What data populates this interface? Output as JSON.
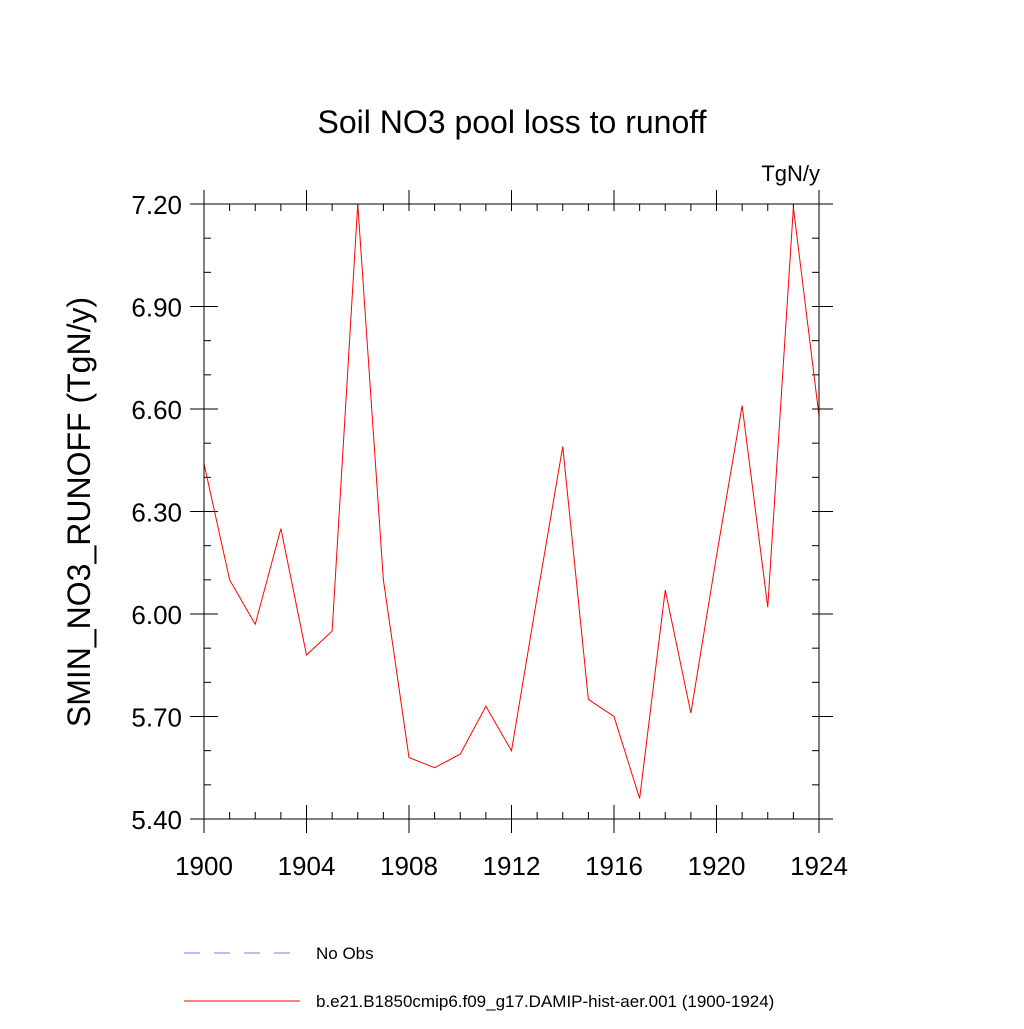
{
  "chart_data": {
    "type": "line",
    "title": "Soil NO3 pool loss to runoff",
    "units_label": "TgN/y",
    "xlabel": "",
    "ylabel": "SMIN_NO3_RUNOFF  (TgN/y)",
    "xlim": [
      1900,
      1924
    ],
    "ylim": [
      5.4,
      7.2
    ],
    "x_ticks": [
      1900,
      1904,
      1908,
      1912,
      1916,
      1920,
      1924
    ],
    "x_tick_labels": [
      "1900",
      "1904",
      "1908",
      "1912",
      "1916",
      "1920",
      "1924"
    ],
    "y_ticks": [
      5.4,
      5.7,
      6.0,
      6.3,
      6.6,
      6.9,
      7.2
    ],
    "y_tick_labels": [
      "5.40",
      "5.70",
      "6.00",
      "6.30",
      "6.60",
      "6.90",
      "7.20"
    ],
    "x_minor_step": 1,
    "y_minor_step": 0.1,
    "grid": false,
    "legend_position": "bottom",
    "series": [
      {
        "name": "b.e21.B1850cmip6.f09_g17.DAMIP-hist-aer.001 (1900-1924)",
        "color": "#ff0000",
        "style": "solid",
        "x": [
          1900,
          1901,
          1902,
          1903,
          1904,
          1905,
          1906,
          1907,
          1908,
          1909,
          1910,
          1911,
          1912,
          1913,
          1914,
          1915,
          1916,
          1917,
          1918,
          1919,
          1920,
          1921,
          1922,
          1923,
          1924
        ],
        "values": [
          6.44,
          6.1,
          5.97,
          6.25,
          5.88,
          5.95,
          7.2,
          6.1,
          5.58,
          5.55,
          5.59,
          5.73,
          5.6,
          6.05,
          6.49,
          5.75,
          5.7,
          5.46,
          6.07,
          5.71,
          6.17,
          6.61,
          6.02,
          7.19,
          6.58
        ]
      }
    ],
    "legend": [
      {
        "label": "No Obs",
        "color": "#7b7bd6",
        "style": "dashed"
      },
      {
        "label": "b.e21.B1850cmip6.f09_g17.DAMIP-hist-aer.001 (1900-1924)",
        "color": "#ff0000",
        "style": "solid"
      }
    ]
  }
}
